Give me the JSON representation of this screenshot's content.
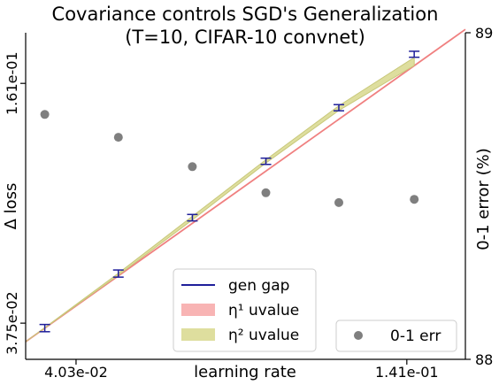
{
  "chart_data": {
    "type": "scatter",
    "title": "Covariance controls SGD's Generalization",
    "subtitle": "(T=10, CIFAR-10 convnet)",
    "xlabel": "learning rate",
    "ylabel_left": "Δ loss",
    "ylabel_right": "0-1 error (%)",
    "x_scale": "log",
    "y_left_scale": "log",
    "xlim": [
      0.0333,
      0.176
    ],
    "ylim_left": [
      0.0301,
      0.219
    ],
    "ylim_right": [
      88,
      89
    ],
    "x_ticks": [
      {
        "value": 0.0403,
        "label": "4.03e-02"
      },
      {
        "value": 0.141,
        "label": "1.41e-01"
      }
    ],
    "y_left_ticks": [
      {
        "value": 0.0375,
        "label": "3.75e-02"
      },
      {
        "value": 0.161,
        "label": "1.61e-01"
      }
    ],
    "y_right_ticks": [
      {
        "value": 88,
        "label": "88"
      },
      {
        "value": 89,
        "label": "89"
      }
    ],
    "grid": false,
    "series": [
      {
        "name": "gen gap",
        "kind": "errorbar",
        "color": "#1f1f9a",
        "x": [
          0.0358,
          0.0473,
          0.0626,
          0.0827,
          0.109,
          0.145
        ],
        "y": [
          0.0364,
          0.0507,
          0.0712,
          0.1003,
          0.1389,
          0.1922
        ],
        "yerr": [
          0.0008,
          0.0011,
          0.0014,
          0.0019,
          0.0026,
          0.0035
        ]
      },
      {
        "name": "η¹ uvalue",
        "kind": "line",
        "color": "#f08080",
        "band_color": "#f8b4b4",
        "x": [
          0.0333,
          0.176
        ],
        "y": [
          0.0335,
          0.2235
        ]
      },
      {
        "name": "η² uvalue",
        "kind": "band",
        "color": "#dede9e",
        "edge_color": "#c8c87a",
        "x": [
          0.0333,
          0.0473,
          0.0626,
          0.0827,
          0.109,
          0.145
        ],
        "y_low": [
          0.0335,
          0.0502,
          0.0702,
          0.0992,
          0.1366,
          0.1795
        ],
        "y_high": [
          0.0335,
          0.0508,
          0.0718,
          0.1012,
          0.1405,
          0.1885
        ]
      },
      {
        "name": "0-1 err",
        "kind": "scatter",
        "axis": "right",
        "color": "#7f7f7f",
        "x": [
          0.0358,
          0.0473,
          0.0626,
          0.0827,
          0.109,
          0.145
        ],
        "y": [
          88.75,
          88.68,
          88.59,
          88.51,
          88.48,
          88.49
        ]
      }
    ],
    "legends": [
      {
        "placement": "lower-center",
        "entries": [
          "gen gap",
          "η¹ uvalue",
          "η² uvalue"
        ]
      },
      {
        "placement": "lower-right",
        "entries": [
          "0-1 err"
        ]
      }
    ]
  }
}
